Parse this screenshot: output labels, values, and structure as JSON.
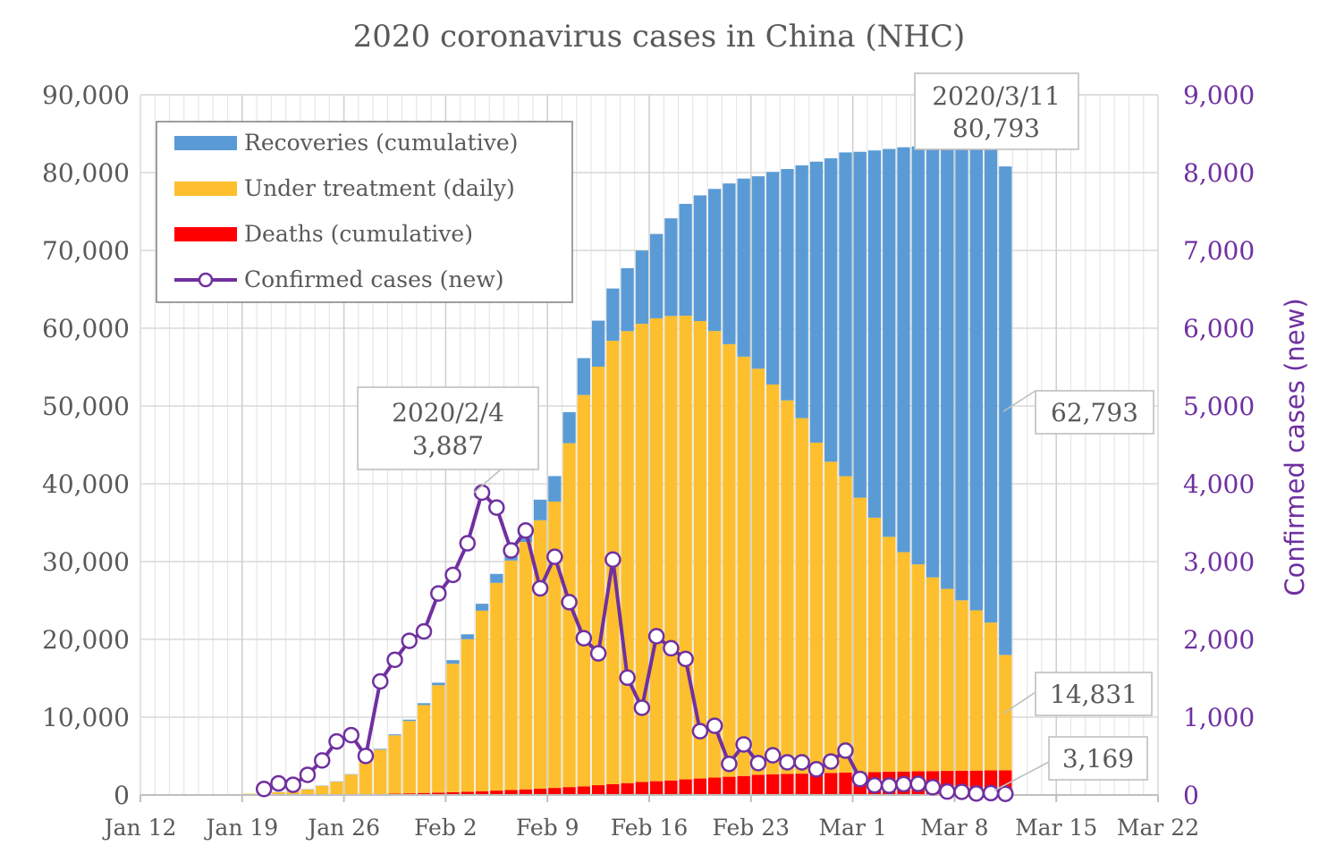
{
  "chart_data": {
    "type": "bar",
    "title": "2020 coronavirus cases in China (NHC)",
    "stacked": true,
    "x_ticks": [
      "Jan 12",
      "Jan 19",
      "Jan 26",
      "Feb 2",
      "Feb 9",
      "Feb 16",
      "Feb 23",
      "Mar 1",
      "Mar 8",
      "Mar 15",
      "Mar 22"
    ],
    "y_left": {
      "min": 0,
      "max": 90000,
      "ticks": [
        "0",
        "10,000",
        "20,000",
        "30,000",
        "40,000",
        "50,000",
        "60,000",
        "70,000",
        "80,000",
        "90,000"
      ]
    },
    "y_right": {
      "label": "Confirmed cases (new)",
      "min": 0,
      "max": 9000,
      "ticks": [
        "0",
        "1,000",
        "2,000",
        "3,000",
        "4,000",
        "5,000",
        "6,000",
        "7,000",
        "8,000",
        "9,000"
      ]
    },
    "legend": {
      "position": "top-left",
      "entries": [
        "Recoveries (cumulative)",
        "Under treatment (daily)",
        "Deaths (cumulative)",
        "Confirmed cases (new)"
      ]
    },
    "colors": {
      "recoveries": "#5b9bd5",
      "treatment": "#fdbf2d",
      "deaths": "#ff0000",
      "confirmed": "#7030a0"
    },
    "dates": [
      "Jan 12",
      "Jan 13",
      "Jan 14",
      "Jan 15",
      "Jan 16",
      "Jan 17",
      "Jan 18",
      "Jan 19",
      "Jan 20",
      "Jan 21",
      "Jan 22",
      "Jan 23",
      "Jan 24",
      "Jan 25",
      "Jan 26",
      "Jan 27",
      "Jan 28",
      "Jan 29",
      "Jan 30",
      "Jan 31",
      "Feb 1",
      "Feb 2",
      "Feb 3",
      "Feb 4",
      "Feb 5",
      "Feb 6",
      "Feb 7",
      "Feb 8",
      "Feb 9",
      "Feb 10",
      "Feb 11",
      "Feb 12",
      "Feb 13",
      "Feb 14",
      "Feb 15",
      "Feb 16",
      "Feb 17",
      "Feb 18",
      "Feb 19",
      "Feb 20",
      "Feb 21",
      "Feb 22",
      "Feb 23",
      "Feb 24",
      "Feb 25",
      "Feb 26",
      "Feb 27",
      "Feb 28",
      "Feb 29",
      "Mar 1",
      "Mar 2",
      "Mar 3",
      "Mar 4",
      "Mar 5",
      "Mar 6",
      "Mar 7",
      "Mar 8",
      "Mar 9",
      "Mar 10",
      "Mar 11"
    ],
    "series": [
      {
        "name": "Deaths (cumulative)",
        "values": [
          1,
          1,
          1,
          1,
          2,
          2,
          3,
          4,
          6,
          9,
          17,
          25,
          41,
          56,
          80,
          106,
          132,
          170,
          213,
          259,
          304,
          361,
          425,
          490,
          563,
          636,
          722,
          811,
          908,
          1016,
          1113,
          1259,
          1380,
          1523,
          1665,
          1770,
          1868,
          2004,
          2118,
          2236,
          2345,
          2442,
          2592,
          2663,
          2715,
          2744,
          2788,
          2835,
          2870,
          2912,
          2943,
          2981,
          3012,
          3042,
          3070,
          3097,
          3119,
          3136,
          3158,
          3169
        ]
      },
      {
        "name": "Under treatment (daily)",
        "values": [
          40,
          40,
          40,
          40,
          40,
          60,
          120,
          170,
          210,
          350,
          480,
          690,
          1120,
          1640,
          2540,
          4300,
          5700,
          7500,
          9300,
          11300,
          13800,
          16500,
          19600,
          23200,
          26700,
          29500,
          31800,
          34500,
          36800,
          44200,
          50300,
          53800,
          57000,
          58100,
          58900,
          59500,
          59700,
          59600,
          58800,
          57400,
          55600,
          53900,
          52200,
          50100,
          48000,
          45700,
          42500,
          40000,
          38100,
          35300,
          32700,
          30200,
          28200,
          26600,
          24900,
          23400,
          21900,
          20600,
          19000,
          14831
        ]
      },
      {
        "name": "Recoveries (cumulative)",
        "values": [
          0,
          0,
          0,
          0,
          0,
          0,
          0,
          0,
          25,
          28,
          34,
          38,
          39,
          49,
          51,
          60,
          103,
          124,
          171,
          243,
          328,
          475,
          632,
          892,
          1153,
          1540,
          2050,
          2649,
          3281,
          3996,
          4740,
          5911,
          6723,
          8096,
          9419,
          10844,
          12552,
          14376,
          16155,
          18264,
          20659,
          22888,
          24734,
          27323,
          29745,
          32495,
          36117,
          39002,
          41625,
          44462,
          47204,
          49856,
          52045,
          53726,
          55404,
          57065,
          58600,
          59897,
          61475,
          62793
        ]
      },
      {
        "name": "Confirmed cases (new)",
        "values": [
          null,
          null,
          null,
          null,
          null,
          null,
          null,
          null,
          77,
          149,
          131,
          259,
          444,
          688,
          769,
          502,
          1460,
          1737,
          1982,
          2102,
          2590,
          2829,
          3235,
          3887,
          3694,
          3143,
          3399,
          2656,
          3062,
          2478,
          2015,
          1820,
          3026,
          1508,
          1121,
          2040,
          1886,
          1749,
          820,
          890,
          400,
          650,
          410,
          510,
          420,
          420,
          330,
          430,
          570,
          205,
          125,
          120,
          139,
          143,
          100,
          44,
          40,
          19,
          24,
          15
        ]
      }
    ],
    "annotations": [
      {
        "label": "2020/3/11",
        "value": "80,793"
      },
      {
        "label": "2020/2/4",
        "value": "3,887"
      },
      {
        "value": "62,793"
      },
      {
        "value": "14,831"
      },
      {
        "value": "3,169"
      }
    ]
  }
}
